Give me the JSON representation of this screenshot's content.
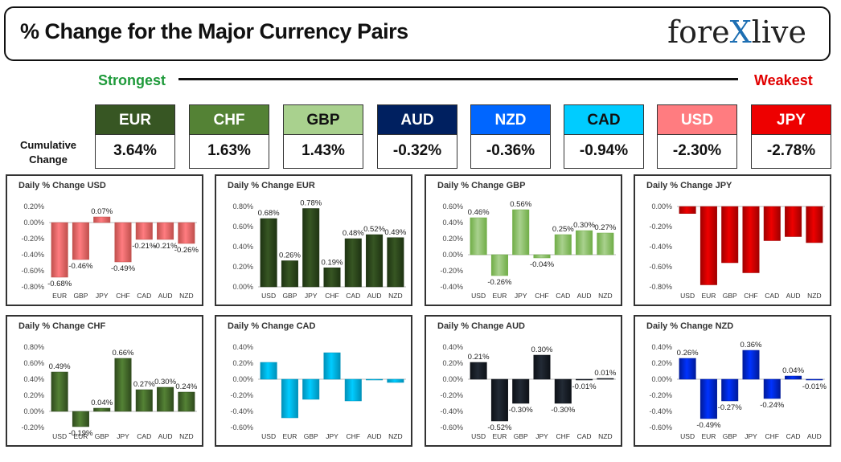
{
  "header": {
    "title": "% Change for the Major Currency Pairs",
    "logo_main": "fore",
    "logo_x": "X",
    "logo_end": "live",
    "strongest": "Strongest",
    "weakest": "Weakest",
    "cumulative_label_1": "Cumulative",
    "cumulative_label_2": "Change"
  },
  "currencies": [
    {
      "code": "EUR",
      "change": "3.64%",
      "head_bg": "#375623",
      "head_fg": "#ffffff"
    },
    {
      "code": "CHF",
      "change": "1.63%",
      "head_bg": "#548235",
      "head_fg": "#ffffff"
    },
    {
      "code": "GBP",
      "change": "1.43%",
      "head_bg": "#a9d18e",
      "head_fg": "#111111"
    },
    {
      "code": "AUD",
      "change": "-0.32%",
      "head_bg": "#002060",
      "head_fg": "#ffffff"
    },
    {
      "code": "NZD",
      "change": "-0.36%",
      "head_bg": "#0066ff",
      "head_fg": "#ffffff"
    },
    {
      "code": "CAD",
      "change": "-0.94%",
      "head_bg": "#00ccff",
      "head_fg": "#111111"
    },
    {
      "code": "USD",
      "change": "-2.30%",
      "head_bg": "#ff7c80",
      "head_fg": "#ffffff"
    },
    {
      "code": "JPY",
      "change": "-2.78%",
      "head_bg": "#ee0000",
      "head_fg": "#ffffff"
    }
  ],
  "chart_data": [
    {
      "type": "bar",
      "title": "Daily % Change USD",
      "categories": [
        "EUR",
        "GBP",
        "JPY",
        "CHF",
        "CAD",
        "AUD",
        "NZD"
      ],
      "values": [
        -0.68,
        -0.46,
        0.07,
        -0.49,
        -0.21,
        -0.21,
        -0.26
      ],
      "data_labels": [
        "-0.68%",
        "-0.46%",
        "0.07%",
        "-0.49%",
        "-0.21%",
        "-0.21%",
        "-0.26%"
      ],
      "ylim": [
        -0.8,
        0.2
      ],
      "ticks": [
        0.2,
        0.0,
        -0.2,
        -0.4,
        -0.6,
        -0.8
      ],
      "tick_labels": [
        "0.20%",
        "0.00%",
        "-0.20%",
        "-0.40%",
        "-0.60%",
        "-0.80%"
      ],
      "color": "#ff7c80",
      "color_dark": "#c0504d"
    },
    {
      "type": "bar",
      "title": "Daily % Change EUR",
      "categories": [
        "USD",
        "GBP",
        "JPY",
        "CHF",
        "CAD",
        "AUD",
        "NZD"
      ],
      "values": [
        0.68,
        0.26,
        0.78,
        0.19,
        0.48,
        0.52,
        0.49
      ],
      "data_labels": [
        "0.68%",
        "0.26%",
        "0.78%",
        "0.19%",
        "0.48%",
        "0.52%",
        "0.49%"
      ],
      "ylim": [
        0.0,
        0.8
      ],
      "ticks": [
        0.8,
        0.6,
        0.4,
        0.2,
        0.0
      ],
      "tick_labels": [
        "0.80%",
        "0.60%",
        "0.40%",
        "0.20%",
        "0.00%"
      ],
      "color": "#375623",
      "color_dark": "#1e3312"
    },
    {
      "type": "bar",
      "title": "Daily % Change GBP",
      "categories": [
        "USD",
        "EUR",
        "JPY",
        "CHF",
        "CAD",
        "AUD",
        "NZD"
      ],
      "values": [
        0.46,
        -0.26,
        0.56,
        -0.04,
        0.25,
        0.3,
        0.27
      ],
      "data_labels": [
        "0.46%",
        "-0.26%",
        "0.56%",
        "-0.04%",
        "0.25%",
        "0.30%",
        "0.27%"
      ],
      "ylim": [
        -0.4,
        0.6
      ],
      "ticks": [
        0.6,
        0.4,
        0.2,
        0.0,
        -0.2,
        -0.4
      ],
      "tick_labels": [
        "0.60%",
        "0.40%",
        "0.20%",
        "0.00%",
        "-0.20%",
        "-0.40%"
      ],
      "color": "#a9d18e",
      "color_dark": "#70ad47"
    },
    {
      "type": "bar",
      "title": "Daily % Change JPY",
      "categories": [
        "USD",
        "EUR",
        "GBP",
        "CHF",
        "CAD",
        "AUD",
        "NZD"
      ],
      "values": [
        -0.07,
        -0.78,
        -0.56,
        -0.66,
        -0.34,
        -0.3,
        -0.36
      ],
      "data_labels": [],
      "ylim": [
        -0.8,
        0.0
      ],
      "ticks": [
        0.0,
        -0.2,
        -0.4,
        -0.6,
        -0.8
      ],
      "tick_labels": [
        "0.00%",
        "-0.20%",
        "-0.40%",
        "-0.60%",
        "-0.80%"
      ],
      "color": "#ee0000",
      "color_dark": "#a00000"
    },
    {
      "type": "bar",
      "title": "Daily % Change CHF",
      "categories": [
        "USD",
        "EUR",
        "GBP",
        "JPY",
        "CAD",
        "AUD",
        "NZD"
      ],
      "values": [
        0.49,
        -0.19,
        0.04,
        0.66,
        0.27,
        0.3,
        0.24
      ],
      "data_labels": [
        "0.49%",
        "-0.19%",
        "0.04%",
        "0.66%",
        "0.27%",
        "0.30%",
        "0.24%"
      ],
      "ylim": [
        -0.2,
        0.8
      ],
      "ticks": [
        0.8,
        0.6,
        0.4,
        0.2,
        0.0,
        -0.2
      ],
      "tick_labels": [
        "0.80%",
        "0.60%",
        "0.40%",
        "0.20%",
        "0.00%",
        "-0.20%"
      ],
      "color": "#548235",
      "color_dark": "#2f4a1d"
    },
    {
      "type": "bar",
      "title": "Daily % Change CAD",
      "categories": [
        "USD",
        "EUR",
        "GBP",
        "JPY",
        "CHF",
        "AUD",
        "NZD"
      ],
      "values": [
        0.21,
        -0.48,
        -0.25,
        0.33,
        -0.27,
        -0.01,
        -0.04
      ],
      "data_labels": [],
      "ylim": [
        -0.6,
        0.4
      ],
      "ticks": [
        0.4,
        0.2,
        0.0,
        -0.2,
        -0.4,
        -0.6
      ],
      "tick_labels": [
        "0.40%",
        "0.20%",
        "0.00%",
        "-0.20%",
        "-0.40%",
        "-0.60%"
      ],
      "color": "#00ccff",
      "color_dark": "#0090b8"
    },
    {
      "type": "bar",
      "title": "Daily % Change AUD",
      "categories": [
        "USD",
        "EUR",
        "GBP",
        "JPY",
        "CHF",
        "CAD",
        "NZD"
      ],
      "values": [
        0.21,
        -0.52,
        -0.3,
        0.3,
        -0.3,
        -0.01,
        0.01
      ],
      "data_labels": [
        "0.21%",
        "-0.52%",
        "-0.30%",
        "0.30%",
        "-0.30%",
        "-0.01%",
        "0.01%"
      ],
      "ylim": [
        -0.6,
        0.4
      ],
      "ticks": [
        0.4,
        0.2,
        0.0,
        -0.2,
        -0.4,
        -0.6
      ],
      "tick_labels": [
        "0.40%",
        "0.20%",
        "0.00%",
        "-0.20%",
        "-0.40%",
        "-0.60%"
      ],
      "color": "#222a35",
      "color_dark": "#0d1117"
    },
    {
      "type": "bar",
      "title": "Daily % Change NZD",
      "categories": [
        "USD",
        "EUR",
        "GBP",
        "JPY",
        "CHF",
        "CAD",
        "AUD"
      ],
      "values": [
        0.26,
        -0.49,
        -0.27,
        0.36,
        -0.24,
        0.04,
        -0.01
      ],
      "data_labels": [
        "0.26%",
        "-0.49%",
        "-0.27%",
        "0.36%",
        "-0.24%",
        "0.04%",
        "-0.01%"
      ],
      "ylim": [
        -0.6,
        0.4
      ],
      "ticks": [
        0.4,
        0.2,
        0.0,
        -0.2,
        -0.4,
        -0.6
      ],
      "tick_labels": [
        "0.40%",
        "0.20%",
        "0.00%",
        "-0.20%",
        "-0.40%",
        "-0.60%"
      ],
      "color": "#0033ff",
      "color_dark": "#001a99"
    }
  ]
}
